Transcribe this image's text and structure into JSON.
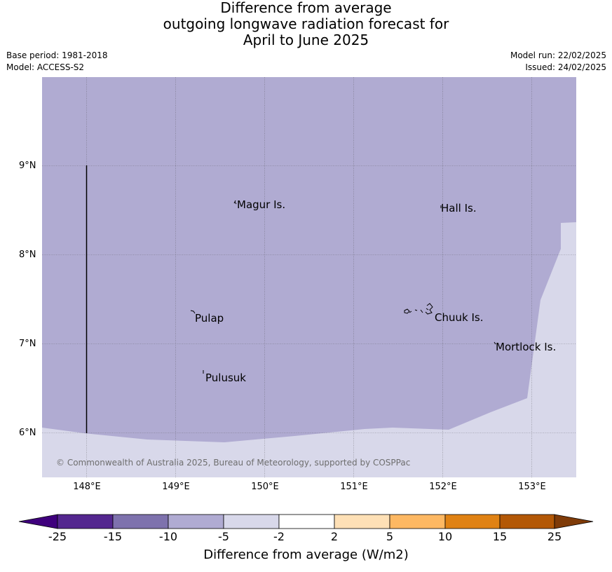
{
  "title": {
    "line1": "Difference from average",
    "line2": "outgoing longwave radiation forecast for",
    "line3": "April to June 2025"
  },
  "meta": {
    "base_period": "Base period: 1981-2018",
    "model": "Model: ACCESS-S2",
    "model_run": "Model run: 22/02/2025",
    "issued": "Issued: 24/02/2025"
  },
  "map": {
    "lon_range": [
      147.5,
      153.5
    ],
    "lat_range": [
      5.5,
      10.0
    ],
    "graticule": true,
    "background_color": "#b0abd2",
    "lat_labels": [
      "9°N",
      "8°N",
      "7°N",
      "6°N"
    ],
    "lon_labels": [
      "148°E",
      "149°E",
      "150°E",
      "151°E",
      "152°E",
      "153°E"
    ],
    "places": [
      {
        "name": "Magur Is.",
        "lon": 149.66,
        "lat": 8.57
      },
      {
        "name": "Hall Is.",
        "lon": 151.98,
        "lat": 8.53
      },
      {
        "name": "Pulap",
        "lon": 149.19,
        "lat": 7.33
      },
      {
        "name": "Chuuk Is.",
        "lon": 151.85,
        "lat": 7.33
      },
      {
        "name": "Mortlock Is.",
        "lon": 152.58,
        "lat": 6.99
      },
      {
        "name": "Pulusuk",
        "lon": 149.31,
        "lat": 6.68
      }
    ],
    "copyright": "© Commonwealth of Australia 2025, Bureau of Meteorology, supported by COSPPac"
  },
  "colorbar": {
    "title": "Difference from average (W/m2)",
    "ticks": [
      "-25",
      "-15",
      "-10",
      "-5",
      "-2",
      "2",
      "5",
      "10",
      "15",
      "25"
    ],
    "colors": [
      "#3f007d",
      "#54278f",
      "#7e72ad",
      "#b0abd2",
      "#d8d8ea",
      "#ffffff",
      "#fee0b6",
      "#fdb863",
      "#e08214",
      "#b35806",
      "#7f3b08"
    ]
  },
  "chart_data": {
    "type": "heatmap",
    "title": "Difference from average outgoing longwave radiation forecast for April to June 2025",
    "xlabel": "",
    "ylabel": "",
    "xlim": [
      147.5,
      153.5
    ],
    "ylim": [
      5.5,
      10.0
    ],
    "legend_title": "Difference from average (W/m2)",
    "categories": [
      "-25 to -15",
      "-15 to -10",
      "-10 to -5",
      "-5 to -2",
      "-2 to 2",
      "2 to 5",
      "5 to 10",
      "10 to 15",
      "15 to 25"
    ],
    "series": [
      {
        "category": "-10 to -5",
        "color": "#b0abd2",
        "extent": "most of domain north of ~6°N"
      },
      {
        "category": "-5 to -2",
        "color": "#d8d8ea",
        "extent": "south of ~6°N and south-east corner"
      }
    ]
  }
}
